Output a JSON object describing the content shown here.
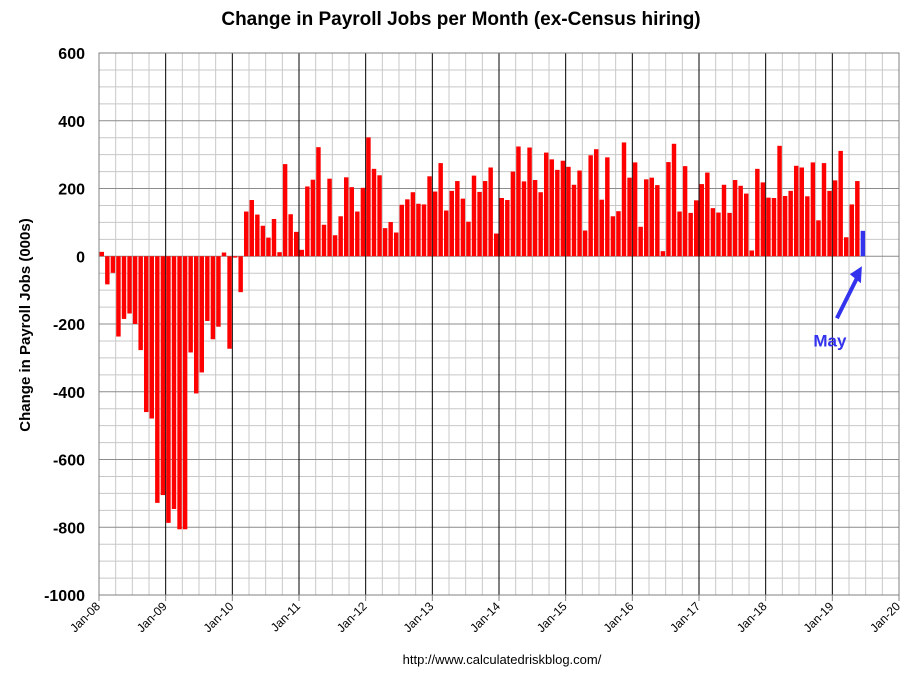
{
  "chart_data": {
    "type": "bar",
    "title": "Change in Payroll Jobs per Month (ex-Census hiring)",
    "ylabel": "Change in Payroll Jobs (000s)",
    "xlabel": "",
    "source": "http://www.calculatedriskblog.com/",
    "ylim": [
      -1000,
      600
    ],
    "yticks": [
      600,
      400,
      200,
      0,
      -200,
      -400,
      -600,
      -800,
      -1000
    ],
    "xlim": [
      "Jan-08",
      "Jan-20"
    ],
    "xticks": [
      "Jan-08",
      "Jan-09",
      "Jan-10",
      "Jan-11",
      "Jan-12",
      "Jan-13",
      "Jan-14",
      "Jan-15",
      "Jan-16",
      "Jan-17",
      "Jan-18",
      "Jan-19",
      "Jan-20"
    ],
    "grid": true,
    "start_month": "Jan-08",
    "bar_color": "#ff0000",
    "highlight_color": "#3333ee",
    "values": [
      13,
      -83,
      -49,
      -237,
      -185,
      -169,
      -200,
      -277,
      -460,
      -479,
      -728,
      -705,
      -787,
      -746,
      -806,
      -806,
      -284,
      -405,
      -343,
      -191,
      -245,
      -208,
      11,
      -273,
      -4,
      -106,
      132,
      166,
      123,
      90,
      55,
      110,
      12,
      272,
      124,
      72,
      19,
      206,
      226,
      322,
      93,
      229,
      62,
      118,
      233,
      204,
      132,
      202,
      351,
      258,
      239,
      83,
      101,
      70,
      152,
      168,
      189,
      155,
      153,
      236,
      191,
      275,
      135,
      193,
      222,
      170,
      102,
      238,
      190,
      222,
      262,
      67,
      172,
      166,
      250,
      324,
      221,
      321,
      225,
      189,
      306,
      286,
      255,
      282,
      264,
      211,
      253,
      76,
      298,
      316,
      167,
      292,
      118,
      133,
      336,
      232,
      277,
      87,
      227,
      232,
      210,
      15,
      278,
      332,
      132,
      266,
      128,
      165,
      213,
      247,
      142,
      129,
      211,
      128,
      225,
      208,
      185,
      17,
      258,
      218,
      173,
      172,
      326,
      178,
      193,
      267,
      262,
      177,
      277,
      106,
      275,
      193,
      224,
      311,
      56,
      153,
      222,
      75
    ],
    "highlight": {
      "label": "May",
      "value": 75
    }
  }
}
